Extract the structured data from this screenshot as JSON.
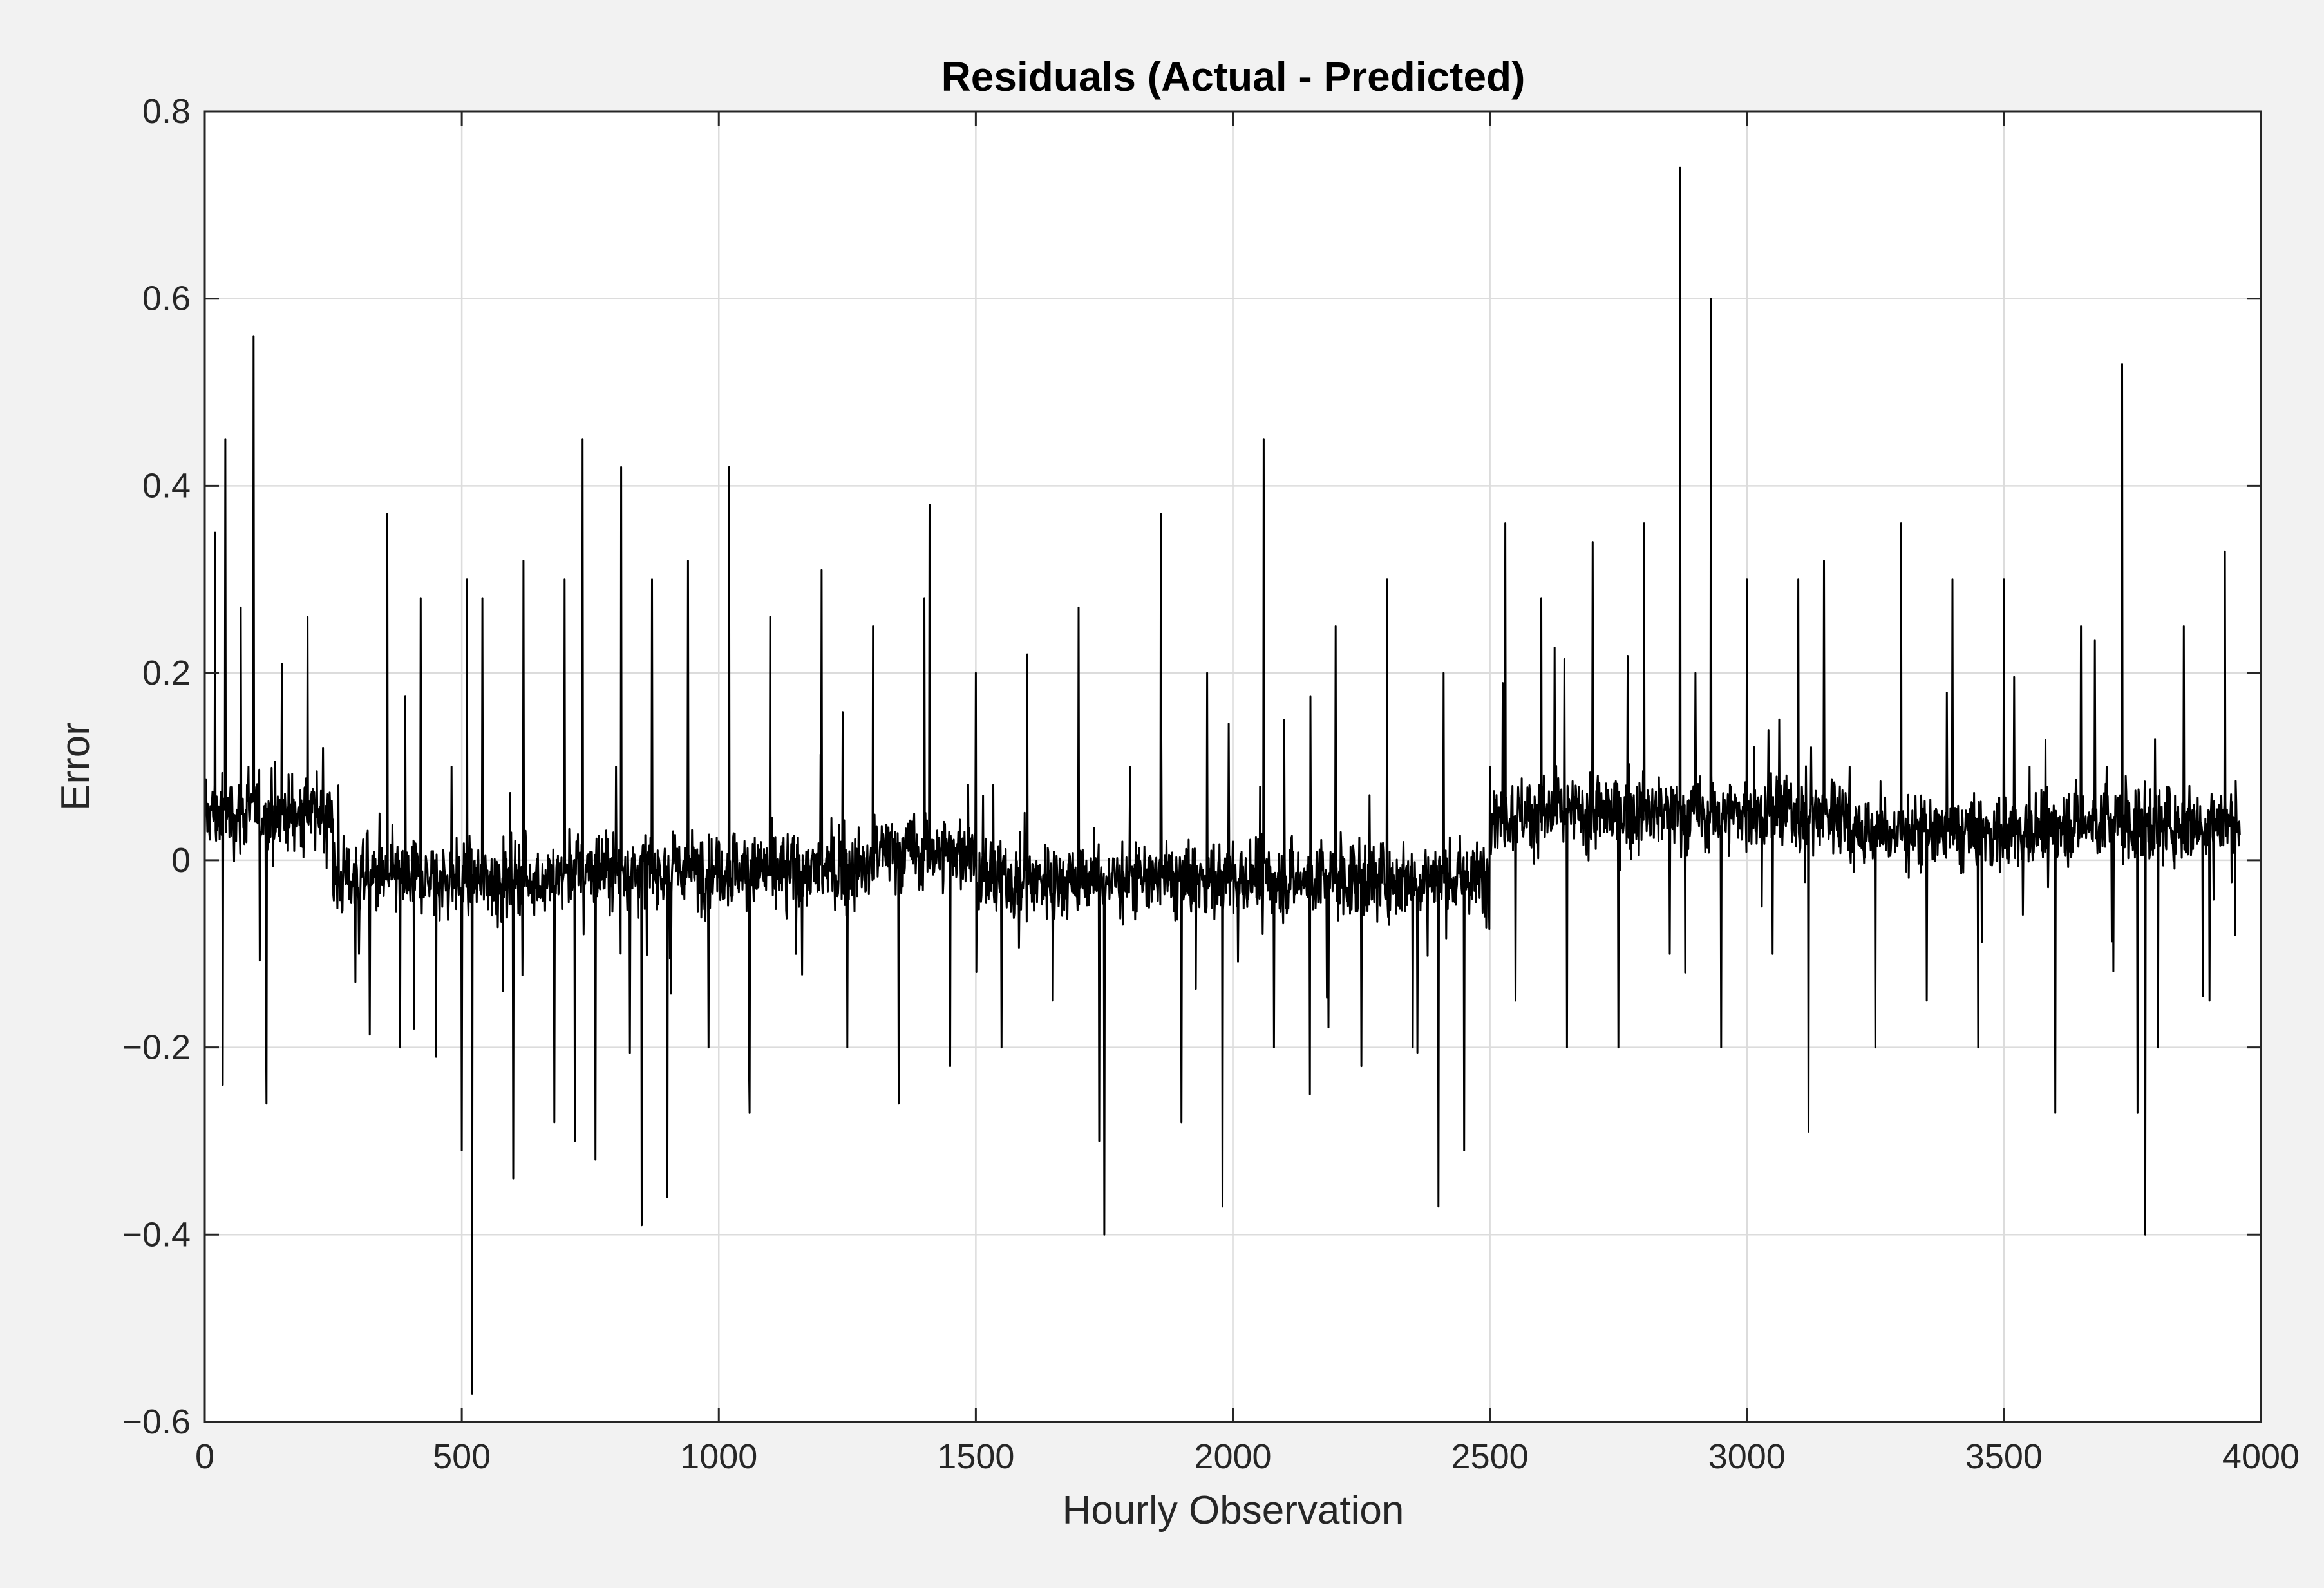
{
  "chart_data": {
    "type": "line",
    "title": "Residuals (Actual - Predicted)",
    "xlabel": "Hourly Observation",
    "ylabel": "Error",
    "xlim": [
      0,
      4000
    ],
    "ylim": [
      -0.6,
      0.8
    ],
    "xticks": [
      0,
      500,
      1000,
      1500,
      2000,
      2500,
      3000,
      3500,
      4000
    ],
    "xtick_labels": [
      "0",
      "500",
      "1000",
      "1500",
      "2000",
      "2500",
      "3000",
      "3500",
      "4000"
    ],
    "yticks": [
      -0.6,
      -0.4,
      -0.2,
      0,
      0.2,
      0.4,
      0.6,
      0.8
    ],
    "ytick_labels": [
      "−0.6",
      "−0.4",
      "−0.2",
      "0",
      "0.2",
      "0.4",
      "0.6",
      "0.8"
    ],
    "grid": true,
    "series": [
      {
        "color": "#000000",
        "n_points": 3960,
        "x": [
          0,
          20,
          35,
          40,
          55,
          70,
          85,
          95,
          120,
          150,
          180,
          200,
          230,
          260,
          300,
          340,
          355,
          380,
          420,
          450,
          480,
          500,
          510,
          520,
          540,
          580,
          600,
          620,
          680,
          700,
          720,
          735,
          760,
          800,
          810,
          850,
          870,
          900,
          940,
          980,
          1000,
          1020,
          1060,
          1100,
          1150,
          1200,
          1250,
          1300,
          1350,
          1400,
          1410,
          1450,
          1500,
          1550,
          1600,
          1650,
          1700,
          1740,
          1750,
          1800,
          1860,
          1900,
          1950,
          1980,
          2000,
          2060,
          2080,
          2100,
          2150,
          2200,
          2250,
          2300,
          2350,
          2400,
          2410,
          2450,
          2500,
          2530,
          2550,
          2600,
          2650,
          2700,
          2750,
          2800,
          2850,
          2870,
          2880,
          2900,
          2930,
          2950,
          3000,
          3050,
          3100,
          3120,
          3150,
          3200,
          3250,
          3300,
          3350,
          3400,
          3450,
          3500,
          3550,
          3600,
          3650,
          3700,
          3730,
          3760,
          3775,
          3800,
          3850,
          3900,
          3930,
          3950,
          3960
        ],
        "values": [
          0.02,
          0.35,
          -0.24,
          0.45,
          0.05,
          0.27,
          0.1,
          0.56,
          -0.26,
          0.21,
          0.05,
          0.26,
          0.12,
          0.08,
          -0.1,
          0.05,
          0.37,
          -0.2,
          0.28,
          -0.21,
          0.1,
          -0.31,
          0.3,
          -0.57,
          0.28,
          -0.14,
          -0.34,
          0.32,
          -0.28,
          0.3,
          -0.3,
          0.45,
          -0.32,
          0.1,
          0.42,
          -0.39,
          0.3,
          -0.36,
          0.32,
          -0.2,
          0.02,
          0.42,
          -0.27,
          0.26,
          -0.1,
          0.31,
          -0.2,
          0.25,
          -0.26,
          0.28,
          0.38,
          -0.22,
          0.2,
          -0.2,
          0.22,
          -0.15,
          0.27,
          -0.3,
          -0.4,
          0.1,
          0.37,
          -0.28,
          0.2,
          -0.37,
          0.02,
          0.45,
          -0.2,
          0.15,
          -0.25,
          0.25,
          -0.22,
          0.3,
          -0.2,
          -0.37,
          0.2,
          -0.31,
          0.1,
          0.36,
          -0.15,
          0.28,
          -0.2,
          0.34,
          -0.2,
          0.36,
          -0.1,
          0.74,
          -0.12,
          0.2,
          0.6,
          -0.2,
          0.3,
          -0.1,
          0.3,
          -0.29,
          0.32,
          0.1,
          -0.2,
          0.36,
          -0.15,
          0.3,
          -0.2,
          0.3,
          0.1,
          -0.27,
          0.25,
          0.1,
          0.53,
          -0.27,
          -0.4,
          -0.2,
          0.25,
          -0.15,
          0.33,
          -0.08,
          0.02
        ]
      }
    ]
  }
}
